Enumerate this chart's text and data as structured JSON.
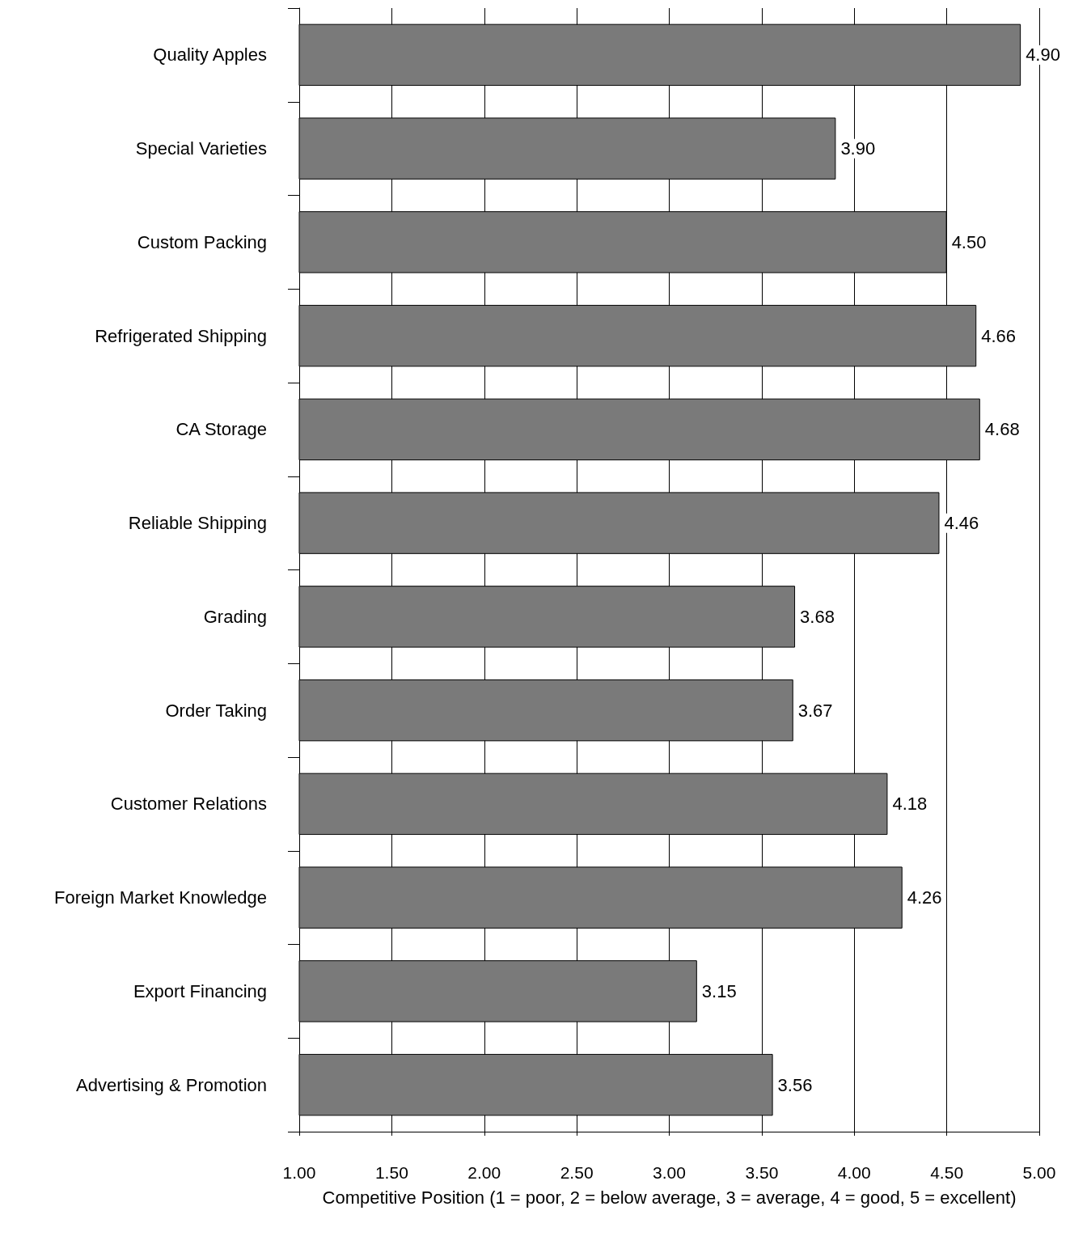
{
  "chart_data": {
    "type": "bar",
    "orientation": "horizontal",
    "xlabel": "Competitive Position (1 = poor, 2 = below average, 3 = average, 4 = good, 5 = excellent)",
    "categories": [
      "Quality Apples",
      "Special Varieties",
      "Custom Packing",
      "Refrigerated Shipping",
      "CA Storage",
      "Reliable Shipping",
      "Grading",
      "Order Taking",
      "Customer Relations",
      "Foreign Market Knowledge",
      "Export Financing",
      "Advertising & Promotion"
    ],
    "values": [
      4.9,
      3.9,
      4.5,
      4.66,
      4.68,
      4.46,
      3.68,
      3.67,
      4.18,
      4.26,
      3.15,
      3.56
    ],
    "value_labels": [
      "4.90",
      "3.90",
      "4.50",
      "4.66",
      "4.68",
      "4.46",
      "3.68",
      "3.67",
      "4.18",
      "4.26",
      "3.15",
      "3.56"
    ],
    "color": "#7a7a7a",
    "xlim": [
      1,
      5
    ],
    "xticks": [
      {
        "value": 1,
        "label": "1.00"
      },
      {
        "value": 1.5,
        "label": "1.50"
      },
      {
        "value": 2,
        "label": "2.00"
      },
      {
        "value": 2.5,
        "label": "2.50"
      },
      {
        "value": 3,
        "label": "3.00"
      },
      {
        "value": 3.5,
        "label": "3.50"
      },
      {
        "value": 4,
        "label": "4.00"
      },
      {
        "value": 4.5,
        "label": "4.50"
      },
      {
        "value": 5,
        "label": "5.00"
      }
    ],
    "grid": "x"
  }
}
